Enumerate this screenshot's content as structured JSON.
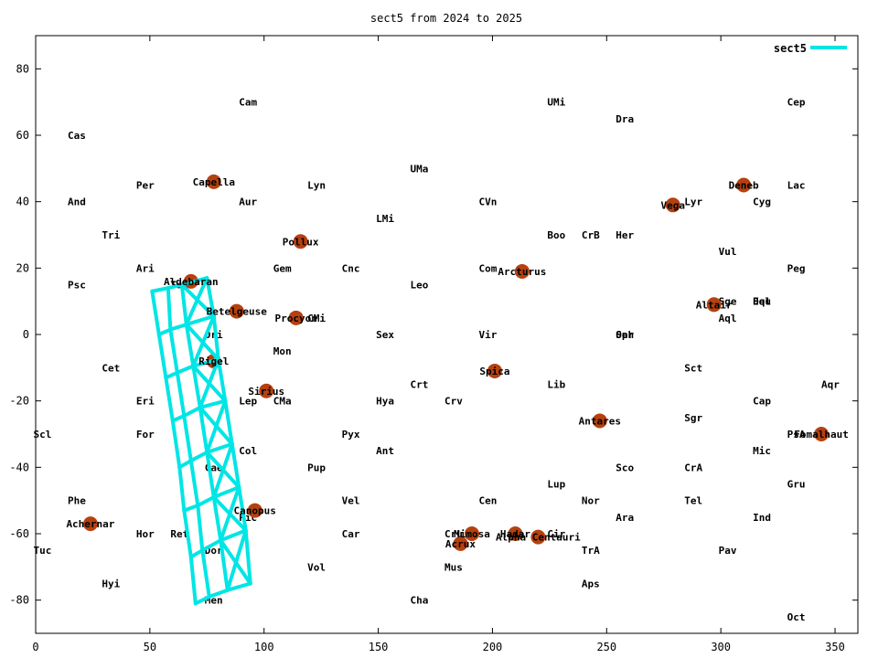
{
  "chart_data": {
    "type": "scatter",
    "title": "sect5 from 2024 to 2025",
    "xlim": [
      0,
      360
    ],
    "ylim": [
      -90,
      90
    ],
    "xticks": [
      0,
      50,
      100,
      150,
      200,
      250,
      300,
      350
    ],
    "yticks": [
      -80,
      -60,
      -40,
      -20,
      0,
      20,
      40,
      60,
      80
    ],
    "legend": {
      "position": "top-right",
      "entries": [
        {
          "name": "sect5",
          "color": "#00e5e5"
        }
      ]
    },
    "colors": {
      "series": "#00e5e5",
      "star": "#b5410f"
    },
    "constellations": [
      {
        "name": "Cas",
        "x": 14,
        "y": 60
      },
      {
        "name": "Cam",
        "x": 89,
        "y": 70
      },
      {
        "name": "UMi",
        "x": 224,
        "y": 70
      },
      {
        "name": "Dra",
        "x": 254,
        "y": 65
      },
      {
        "name": "Cep",
        "x": 329,
        "y": 70
      },
      {
        "name": "UMa",
        "x": 164,
        "y": 50
      },
      {
        "name": "Per",
        "x": 44,
        "y": 45
      },
      {
        "name": "Lyn",
        "x": 119,
        "y": 45
      },
      {
        "name": "Lac",
        "x": 329,
        "y": 45
      },
      {
        "name": "And",
        "x": 14,
        "y": 40
      },
      {
        "name": "Aur",
        "x": 89,
        "y": 40
      },
      {
        "name": "CVn",
        "x": 194,
        "y": 40
      },
      {
        "name": "Lyr",
        "x": 284,
        "y": 40
      },
      {
        "name": "Cyg",
        "x": 314,
        "y": 40
      },
      {
        "name": "LMi",
        "x": 149,
        "y": 35
      },
      {
        "name": "Tri",
        "x": 29,
        "y": 30
      },
      {
        "name": "Boo",
        "x": 224,
        "y": 30
      },
      {
        "name": "CrB",
        "x": 239,
        "y": 30
      },
      {
        "name": "Her",
        "x": 254,
        "y": 30
      },
      {
        "name": "Vul",
        "x": 299,
        "y": 25
      },
      {
        "name": "Ari",
        "x": 44,
        "y": 20
      },
      {
        "name": "Gem",
        "x": 104,
        "y": 20
      },
      {
        "name": "Cnc",
        "x": 134,
        "y": 20
      },
      {
        "name": "Com",
        "x": 194,
        "y": 20
      },
      {
        "name": "Peg",
        "x": 329,
        "y": 20
      },
      {
        "name": "Psc",
        "x": 14,
        "y": 15
      },
      {
        "name": "Tau",
        "x": 59,
        "y": 15
      },
      {
        "name": "Leo",
        "x": 164,
        "y": 15
      },
      {
        "name": "Sge",
        "x": 299,
        "y": 10
      },
      {
        "name": "Del",
        "x": 314,
        "y": 10
      },
      {
        "name": "Equ",
        "x": 314,
        "y": 10
      },
      {
        "name": "CMi",
        "x": 119,
        "y": 5
      },
      {
        "name": "Aql",
        "x": 299,
        "y": 5
      },
      {
        "name": "Ori",
        "x": 74,
        "y": 0
      },
      {
        "name": "Sex",
        "x": 149,
        "y": 0
      },
      {
        "name": "Vir",
        "x": 194,
        "y": 0
      },
      {
        "name": "Oph",
        "x": 254,
        "y": 0
      },
      {
        "name": "Ser",
        "x": 254,
        "y": 0
      },
      {
        "name": "Mon",
        "x": 104,
        "y": -5
      },
      {
        "name": "Cet",
        "x": 29,
        "y": -10
      },
      {
        "name": "Sct",
        "x": 284,
        "y": -10
      },
      {
        "name": "Crt",
        "x": 164,
        "y": -15
      },
      {
        "name": "Lib",
        "x": 224,
        "y": -15
      },
      {
        "name": "Aqr",
        "x": 344,
        "y": -15
      },
      {
        "name": "Eri",
        "x": 44,
        "y": -20
      },
      {
        "name": "Lep",
        "x": 89,
        "y": -20
      },
      {
        "name": "CMa",
        "x": 104,
        "y": -20
      },
      {
        "name": "Hya",
        "x": 149,
        "y": -20
      },
      {
        "name": "Crv",
        "x": 179,
        "y": -20
      },
      {
        "name": "Cap",
        "x": 314,
        "y": -20
      },
      {
        "name": "Sgr",
        "x": 284,
        "y": -25
      },
      {
        "name": "Scl",
        "x": -1,
        "y": -30
      },
      {
        "name": "For",
        "x": 44,
        "y": -30
      },
      {
        "name": "Pyx",
        "x": 134,
        "y": -30
      },
      {
        "name": "PsA",
        "x": 329,
        "y": -30
      },
      {
        "name": "Col",
        "x": 89,
        "y": -35
      },
      {
        "name": "Ant",
        "x": 149,
        "y": -35
      },
      {
        "name": "Mic",
        "x": 314,
        "y": -35
      },
      {
        "name": "Cae",
        "x": 74,
        "y": -40
      },
      {
        "name": "Pup",
        "x": 119,
        "y": -40
      },
      {
        "name": "Sco",
        "x": 254,
        "y": -40
      },
      {
        "name": "CrA",
        "x": 284,
        "y": -40
      },
      {
        "name": "Lup",
        "x": 224,
        "y": -45
      },
      {
        "name": "Gru",
        "x": 329,
        "y": -45
      },
      {
        "name": "Phe",
        "x": 14,
        "y": -50
      },
      {
        "name": "Vel",
        "x": 134,
        "y": -50
      },
      {
        "name": "Cen",
        "x": 194,
        "y": -50
      },
      {
        "name": "Nor",
        "x": 239,
        "y": -50
      },
      {
        "name": "Tel",
        "x": 284,
        "y": -50
      },
      {
        "name": "Pic",
        "x": 89,
        "y": -55
      },
      {
        "name": "Ara",
        "x": 254,
        "y": -55
      },
      {
        "name": "Ind",
        "x": 314,
        "y": -55
      },
      {
        "name": "Hor",
        "x": 44,
        "y": -60
      },
      {
        "name": "Ret",
        "x": 59,
        "y": -60
      },
      {
        "name": "Car",
        "x": 134,
        "y": -60
      },
      {
        "name": "Cru",
        "x": 179,
        "y": -60
      },
      {
        "name": "Cir",
        "x": 224,
        "y": -60
      },
      {
        "name": "Tuc",
        "x": -1,
        "y": -65
      },
      {
        "name": "Dor",
        "x": 74,
        "y": -65
      },
      {
        "name": "TrA",
        "x": 239,
        "y": -65
      },
      {
        "name": "Pav",
        "x": 299,
        "y": -65
      },
      {
        "name": "Vol",
        "x": 119,
        "y": -70
      },
      {
        "name": "Mus",
        "x": 179,
        "y": -70
      },
      {
        "name": "Hyi",
        "x": 29,
        "y": -75
      },
      {
        "name": "Aps",
        "x": 239,
        "y": -75
      },
      {
        "name": "Men",
        "x": 74,
        "y": -80
      },
      {
        "name": "Cha",
        "x": 164,
        "y": -80
      },
      {
        "name": "Oct",
        "x": 329,
        "y": -85
      }
    ],
    "stars": [
      {
        "name": "Capella",
        "x": 78,
        "y": 46
      },
      {
        "name": "Deneb",
        "x": 310,
        "y": 45
      },
      {
        "name": "Vega",
        "x": 279,
        "y": 39
      },
      {
        "name": "Pollux",
        "x": 116,
        "y": 28
      },
      {
        "name": "Arcturus",
        "x": 213,
        "y": 19
      },
      {
        "name": "Aldebaran",
        "x": 68,
        "y": 16
      },
      {
        "name": "Altair",
        "x": 297,
        "y": 9
      },
      {
        "name": "Betelgeuse",
        "x": 88,
        "y": 7
      },
      {
        "name": "Procyon",
        "x": 114,
        "y": 5
      },
      {
        "name": "Rigel",
        "x": 78,
        "y": -8
      },
      {
        "name": "Spica",
        "x": 201,
        "y": -11
      },
      {
        "name": "Sirius",
        "x": 101,
        "y": -17
      },
      {
        "name": "Antares",
        "x": 247,
        "y": -26
      },
      {
        "name": "Fomalhaut",
        "x": 344,
        "y": -30
      },
      {
        "name": "Canopus",
        "x": 96,
        "y": -53
      },
      {
        "name": "Achernar",
        "x": 24,
        "y": -57
      },
      {
        "name": "Mimosa",
        "x": 191,
        "y": -60
      },
      {
        "name": "Hadar",
        "x": 210,
        "y": -60
      },
      {
        "name": "Alpha Centauri",
        "x": 220,
        "y": -61
      },
      {
        "name": "Acrux",
        "x": 186,
        "y": -63
      }
    ],
    "sect5": {
      "grid": [
        [
          [
            51,
            13
          ],
          [
            58,
            14
          ],
          [
            64,
            15
          ],
          [
            75,
            17
          ]
        ],
        [
          [
            54,
            0
          ],
          [
            59,
            1.5
          ],
          [
            66,
            3
          ],
          [
            78,
            5.5
          ]
        ],
        [
          [
            57,
            -13
          ],
          [
            62,
            -11.5
          ],
          [
            69,
            -9.5
          ],
          [
            80,
            -7.5
          ]
        ],
        [
          [
            60,
            -26
          ],
          [
            65,
            -24.5
          ],
          [
            72,
            -22
          ],
          [
            83,
            -20
          ]
        ],
        [
          [
            63,
            -40
          ],
          [
            68,
            -38
          ],
          [
            75,
            -35.5
          ],
          [
            86,
            -33
          ]
        ],
        [
          [
            65,
            -53
          ],
          [
            71,
            -51.5
          ],
          [
            78,
            -49
          ],
          [
            89,
            -46
          ]
        ],
        [
          [
            68,
            -67
          ],
          [
            73,
            -65
          ],
          [
            81,
            -62
          ],
          [
            92,
            -59
          ]
        ],
        [
          [
            70,
            -81
          ],
          [
            76,
            -79
          ],
          [
            84,
            -77
          ],
          [
            94,
            -75
          ]
        ]
      ]
    }
  }
}
